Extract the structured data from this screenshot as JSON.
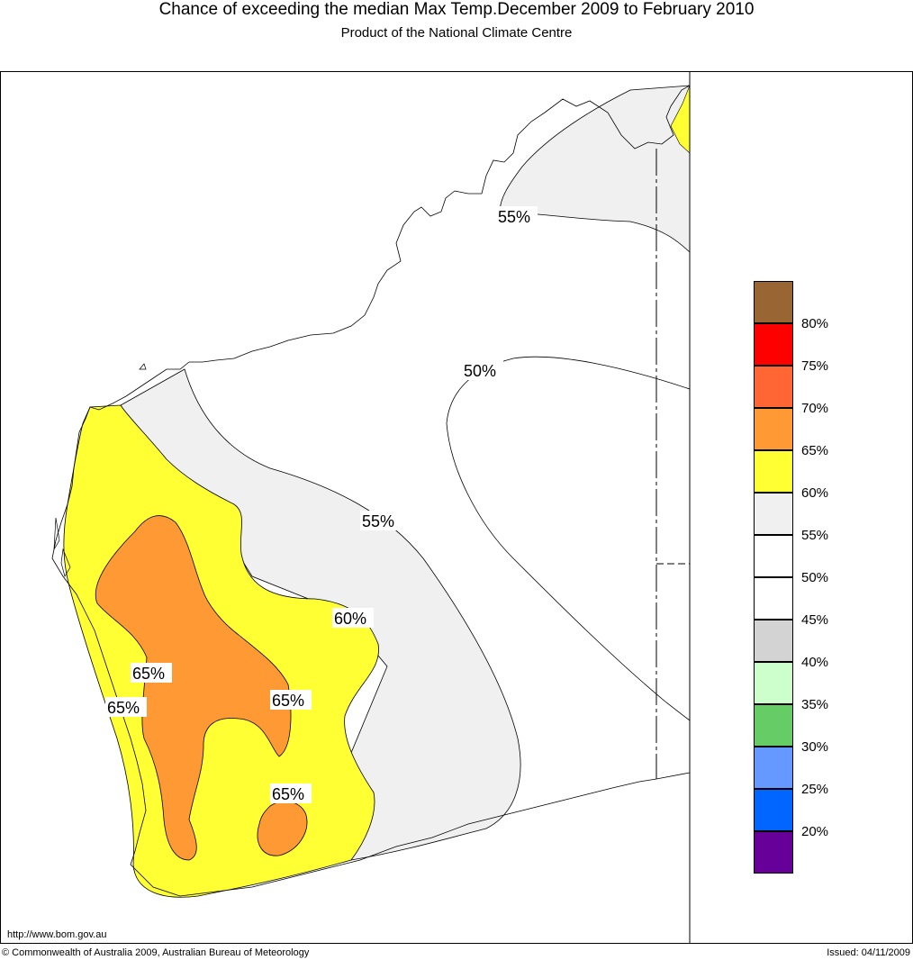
{
  "header": {
    "title": "Chance of exceeding the median Max Temp.December 2009 to February 2010",
    "subtitle": "Product of the National Climate Centre"
  },
  "map": {
    "region": "Western Australia",
    "contour_labels": [
      "55%",
      "50%",
      "55%",
      "60%",
      "65%",
      "65%",
      "65%",
      "65%"
    ],
    "colors": {
      "p55_60": "#f0f0f0",
      "p60_65": "#ffff33",
      "p65_70": "#ff9933",
      "base": "#ffffff"
    }
  },
  "legend": {
    "labels": [
      "80%",
      "75%",
      "70%",
      "65%",
      "60%",
      "55%",
      "50%",
      "45%",
      "40%",
      "35%",
      "30%",
      "25%",
      "20%"
    ],
    "swatches": [
      "#996633",
      "#ff0000",
      "#ff6633",
      "#ff9933",
      "#ffff33",
      "#f0f0f0",
      "#ffffff",
      "#ffffff",
      "#d3d3d3",
      "#ccffcc",
      "#66cc66",
      "#6699ff",
      "#0066ff",
      "#660099"
    ]
  },
  "footer": {
    "url": "http://www.bom.gov.au",
    "copyright": "© Commonwealth of Australia 2009, Australian Bureau of Meteorology",
    "issued": "Issued: 04/11/2009"
  }
}
